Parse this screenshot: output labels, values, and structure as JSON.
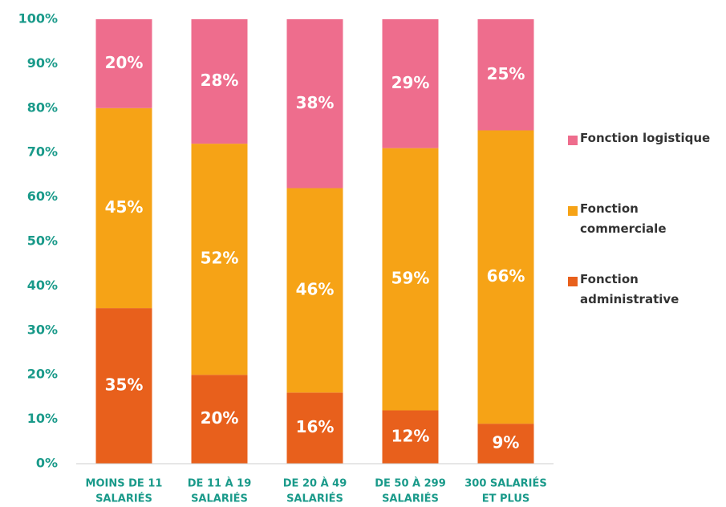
{
  "chart_data": {
    "type": "stacked_bar",
    "categories": [
      [
        "MOINS DE 11",
        "SALARIÉS"
      ],
      [
        "DE 11 À 19",
        "SALARIÉS"
      ],
      [
        "DE 20 À 49",
        "SALARIÉS"
      ],
      [
        "DE 50 À 299",
        "SALARIÉS"
      ],
      [
        "300 SALARIÉS",
        "ET PLUS"
      ]
    ],
    "series": [
      {
        "name": "Fonction administrative",
        "color": "#e8601c",
        "values": [
          35,
          20,
          16,
          12,
          9
        ],
        "value_labels": [
          "35%",
          "20%",
          "16%",
          "12%",
          "9%"
        ]
      },
      {
        "name": "Fonction commerciale",
        "color": "#f6a316",
        "values": [
          45,
          52,
          46,
          59,
          66
        ],
        "value_labels": [
          "45%",
          "52%",
          "46%",
          "59%",
          "66%"
        ]
      },
      {
        "name": "Fonction logistique",
        "color": "#ee6d8d",
        "values": [
          20,
          28,
          38,
          29,
          25
        ],
        "value_labels": [
          "20%",
          "28%",
          "38%",
          "29%",
          "25%"
        ]
      }
    ],
    "ylim": [
      0,
      100
    ],
    "yticks": [
      {
        "value": 0,
        "label": "0%"
      },
      {
        "value": 10,
        "label": "10%"
      },
      {
        "value": 20,
        "label": "20%"
      },
      {
        "value": 30,
        "label": "30%"
      },
      {
        "value": 40,
        "label": "40%"
      },
      {
        "value": 50,
        "label": "50%"
      },
      {
        "value": 60,
        "label": "60%"
      },
      {
        "value": 70,
        "label": "70%"
      },
      {
        "value": 80,
        "label": "80%"
      },
      {
        "value": 90,
        "label": "90%"
      },
      {
        "value": 100,
        "label": "100%"
      }
    ],
    "legend": "right"
  }
}
